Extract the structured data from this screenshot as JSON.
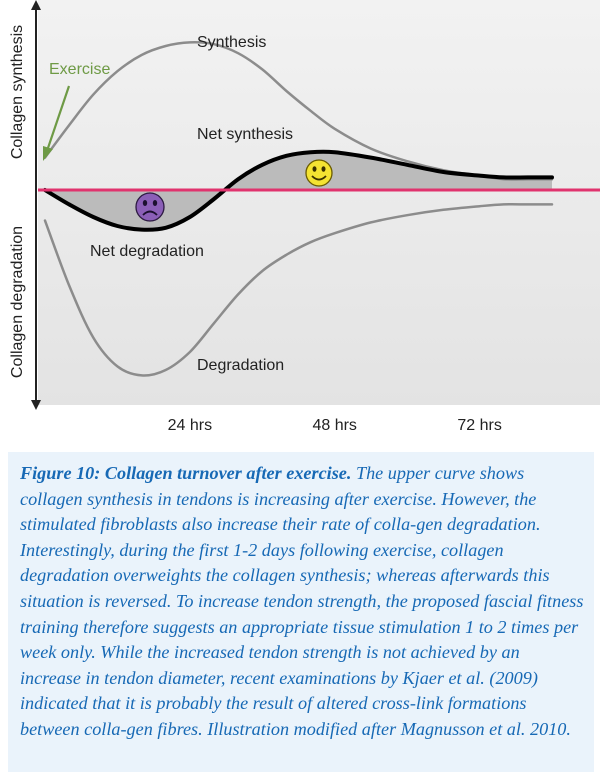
{
  "chart_data": {
    "type": "line",
    "title": "",
    "x_unit": "hrs",
    "xlim": [
      0,
      90
    ],
    "ylim": [
      -1.0,
      1.0
    ],
    "x_ticks": [
      24,
      48,
      72
    ],
    "x_tick_labels": [
      "24 hrs",
      "48 hrs",
      "72 hrs"
    ],
    "ylabel_top": "Collagen synthesis",
    "ylabel_bottom": "Collagen degradation",
    "series": [
      {
        "name": "Synthesis",
        "color": "#8c8c8c",
        "x": [
          0,
          4,
          8,
          12,
          16,
          20,
          24,
          28,
          32,
          36,
          40,
          44,
          48,
          54,
          60,
          66,
          72,
          76,
          80,
          84
        ],
        "values": [
          0.18,
          0.36,
          0.53,
          0.66,
          0.75,
          0.8,
          0.82,
          0.81,
          0.76,
          0.67,
          0.55,
          0.44,
          0.34,
          0.23,
          0.16,
          0.11,
          0.08,
          0.06,
          0.06,
          0.06
        ]
      },
      {
        "name": "Net synthesis",
        "color": "#000000",
        "x": [
          0,
          4,
          8,
          12,
          16,
          20,
          24,
          28,
          32,
          36,
          40,
          44,
          48,
          54,
          60,
          66,
          72,
          76,
          80,
          84
        ],
        "values": [
          0.0,
          -0.08,
          -0.15,
          -0.2,
          -0.22,
          -0.21,
          -0.15,
          -0.05,
          0.06,
          0.14,
          0.19,
          0.21,
          0.21,
          0.18,
          0.14,
          0.1,
          0.08,
          0.07,
          0.07,
          0.07
        ]
      },
      {
        "name": "Degradation",
        "color": "#8c8c8c",
        "x": [
          0,
          4,
          8,
          12,
          16,
          20,
          24,
          28,
          32,
          36,
          40,
          44,
          48,
          54,
          60,
          66,
          72,
          76,
          80,
          84
        ],
        "values": [
          -0.17,
          -0.53,
          -0.82,
          -0.98,
          -1.03,
          -1.0,
          -0.9,
          -0.74,
          -0.58,
          -0.45,
          -0.36,
          -0.29,
          -0.24,
          -0.18,
          -0.14,
          -0.11,
          -0.09,
          -0.08,
          -0.08,
          -0.08
        ]
      }
    ],
    "baseline": {
      "y": 0,
      "color": "#e0336e"
    },
    "annotations": {
      "synthesis_label": "Synthesis",
      "net_synthesis_label": "Net synthesis",
      "net_degradation_label": "Net degradation",
      "degradation_label": "Degradation",
      "exercise_label": "Exercise",
      "exercise_color": "#6e9a45",
      "sad_face_color": "#8b5fb7",
      "happy_face_color": "#f4e332"
    },
    "grid": false,
    "legend": "none"
  },
  "caption": {
    "title": "Figure 10: Collagen turnover after exercise.",
    "text": " The upper curve shows collagen synthesis in tendons is increasing after exercise. However, the stimulated fibroblasts also increase their rate of colla-gen degradation. Interestingly, during the first 1-2 days following exercise, collagen degradation overweights the collagen synthesis; whereas afterwards this situation is reversed. To increase tendon strength, the proposed fascial fitness training therefore suggests an appropriate tissue stimulation 1 to 2 times per week only. While the increased tendon strength is not achieved by an increase in tendon diameter, recent examinations by Kjaer et al. (2009) indicated that it is probably the result of altered cross-link formations between colla-gen fibres. Illustration modified after Magnusson et al. 2010.",
    "color": "#1769b5",
    "background": "#eaf3fb"
  }
}
